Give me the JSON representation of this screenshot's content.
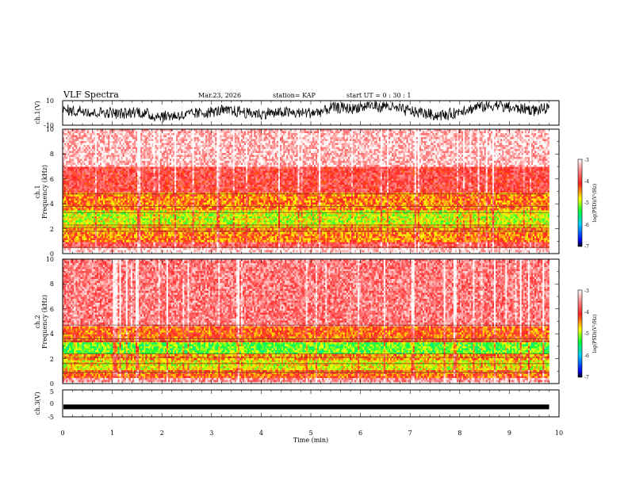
{
  "header": {
    "title": "VLF Spectra",
    "date": "Mar.23, 2026",
    "station": "station= KAP",
    "start": "start  UT =   0 : 30 : 1"
  },
  "chart_data": [
    {
      "type": "line",
      "id": "ch1_voltage",
      "ylabel": "ch.1(V)",
      "ylim": [
        -10,
        10
      ],
      "yticks": [
        "10",
        "-10"
      ],
      "xlim": [
        0,
        10
      ],
      "x_end": 9.8,
      "description_values": "noisy waveform fluctuating roughly between -5 and 8 V"
    },
    {
      "type": "heatmap",
      "id": "ch1_spectrogram",
      "ylabel_line1": "ch.1",
      "ylabel_line2": "Frequency (kHz)",
      "ylim": [
        0,
        10
      ],
      "yticks": [
        "0",
        "2",
        "4",
        "6",
        "8",
        "10"
      ],
      "xlim": [
        0,
        10
      ],
      "x_end": 9.8,
      "bands_kHz": [
        {
          "from": 0.0,
          "to": 0.5,
          "level": -3.2
        },
        {
          "from": 0.5,
          "to": 1.0,
          "level": -3.8
        },
        {
          "from": 1.0,
          "to": 2.0,
          "level": -4.4
        },
        {
          "from": 2.0,
          "to": 2.4,
          "level": -4.7
        },
        {
          "from": 2.4,
          "to": 3.5,
          "level": -4.9
        },
        {
          "from": 3.5,
          "to": 4.9,
          "level": -4.4
        },
        {
          "from": 4.9,
          "to": 7.0,
          "level": -3.9
        },
        {
          "from": 7.0,
          "to": 10.0,
          "level": -3.3
        }
      ],
      "lines_kHz": [
        0.5,
        1.8,
        2.1,
        2.3,
        3.3,
        3.8,
        4.8
      ],
      "colorbar": {
        "label": "log(PSD)(V²/Hz)",
        "range": [
          -7,
          -3
        ],
        "ticks": [
          "-3",
          "-4",
          "-5",
          "-6",
          "-7"
        ]
      }
    },
    {
      "type": "heatmap",
      "id": "ch2_spectrogram",
      "ylabel_line1": "ch.2",
      "ylabel_line2": "Frequency (kHz)",
      "ylim": [
        0,
        10
      ],
      "yticks": [
        "0",
        "2",
        "4",
        "6",
        "8",
        "10"
      ],
      "xlim": [
        0,
        10
      ],
      "x_end": 9.8,
      "bands_kHz": [
        {
          "from": 0.0,
          "to": 0.5,
          "level": -3.5
        },
        {
          "from": 0.5,
          "to": 1.1,
          "level": -4.3
        },
        {
          "from": 1.1,
          "to": 1.9,
          "level": -4.8
        },
        {
          "from": 1.9,
          "to": 2.4,
          "level": -4.5
        },
        {
          "from": 2.4,
          "to": 3.3,
          "level": -5.2
        },
        {
          "from": 3.3,
          "to": 4.6,
          "level": -4.3
        },
        {
          "from": 4.6,
          "to": 10.0,
          "level": -3.6
        }
      ],
      "lines_kHz": [
        0.9,
        1.6,
        2.1,
        2.4,
        3.4,
        3.6,
        4.7
      ],
      "colorbar": {
        "label": "log(PSD)(V²/Hz)",
        "range": [
          -7,
          -3
        ],
        "ticks": [
          "-3",
          "-4",
          "-5",
          "-6",
          "-7"
        ]
      }
    },
    {
      "type": "line",
      "id": "ch3_voltage",
      "ylabel": "ch.3(V)",
      "ylim": [
        -5,
        5
      ],
      "yticks": [
        "5",
        "0",
        "-5"
      ],
      "xlim": [
        0,
        10
      ],
      "x_end": 9.8,
      "level": -1.3,
      "xlabel": "Time (min)",
      "xticks": [
        "0",
        "1",
        "2",
        "3",
        "4",
        "5",
        "6",
        "7",
        "8",
        "9",
        "10"
      ]
    }
  ]
}
